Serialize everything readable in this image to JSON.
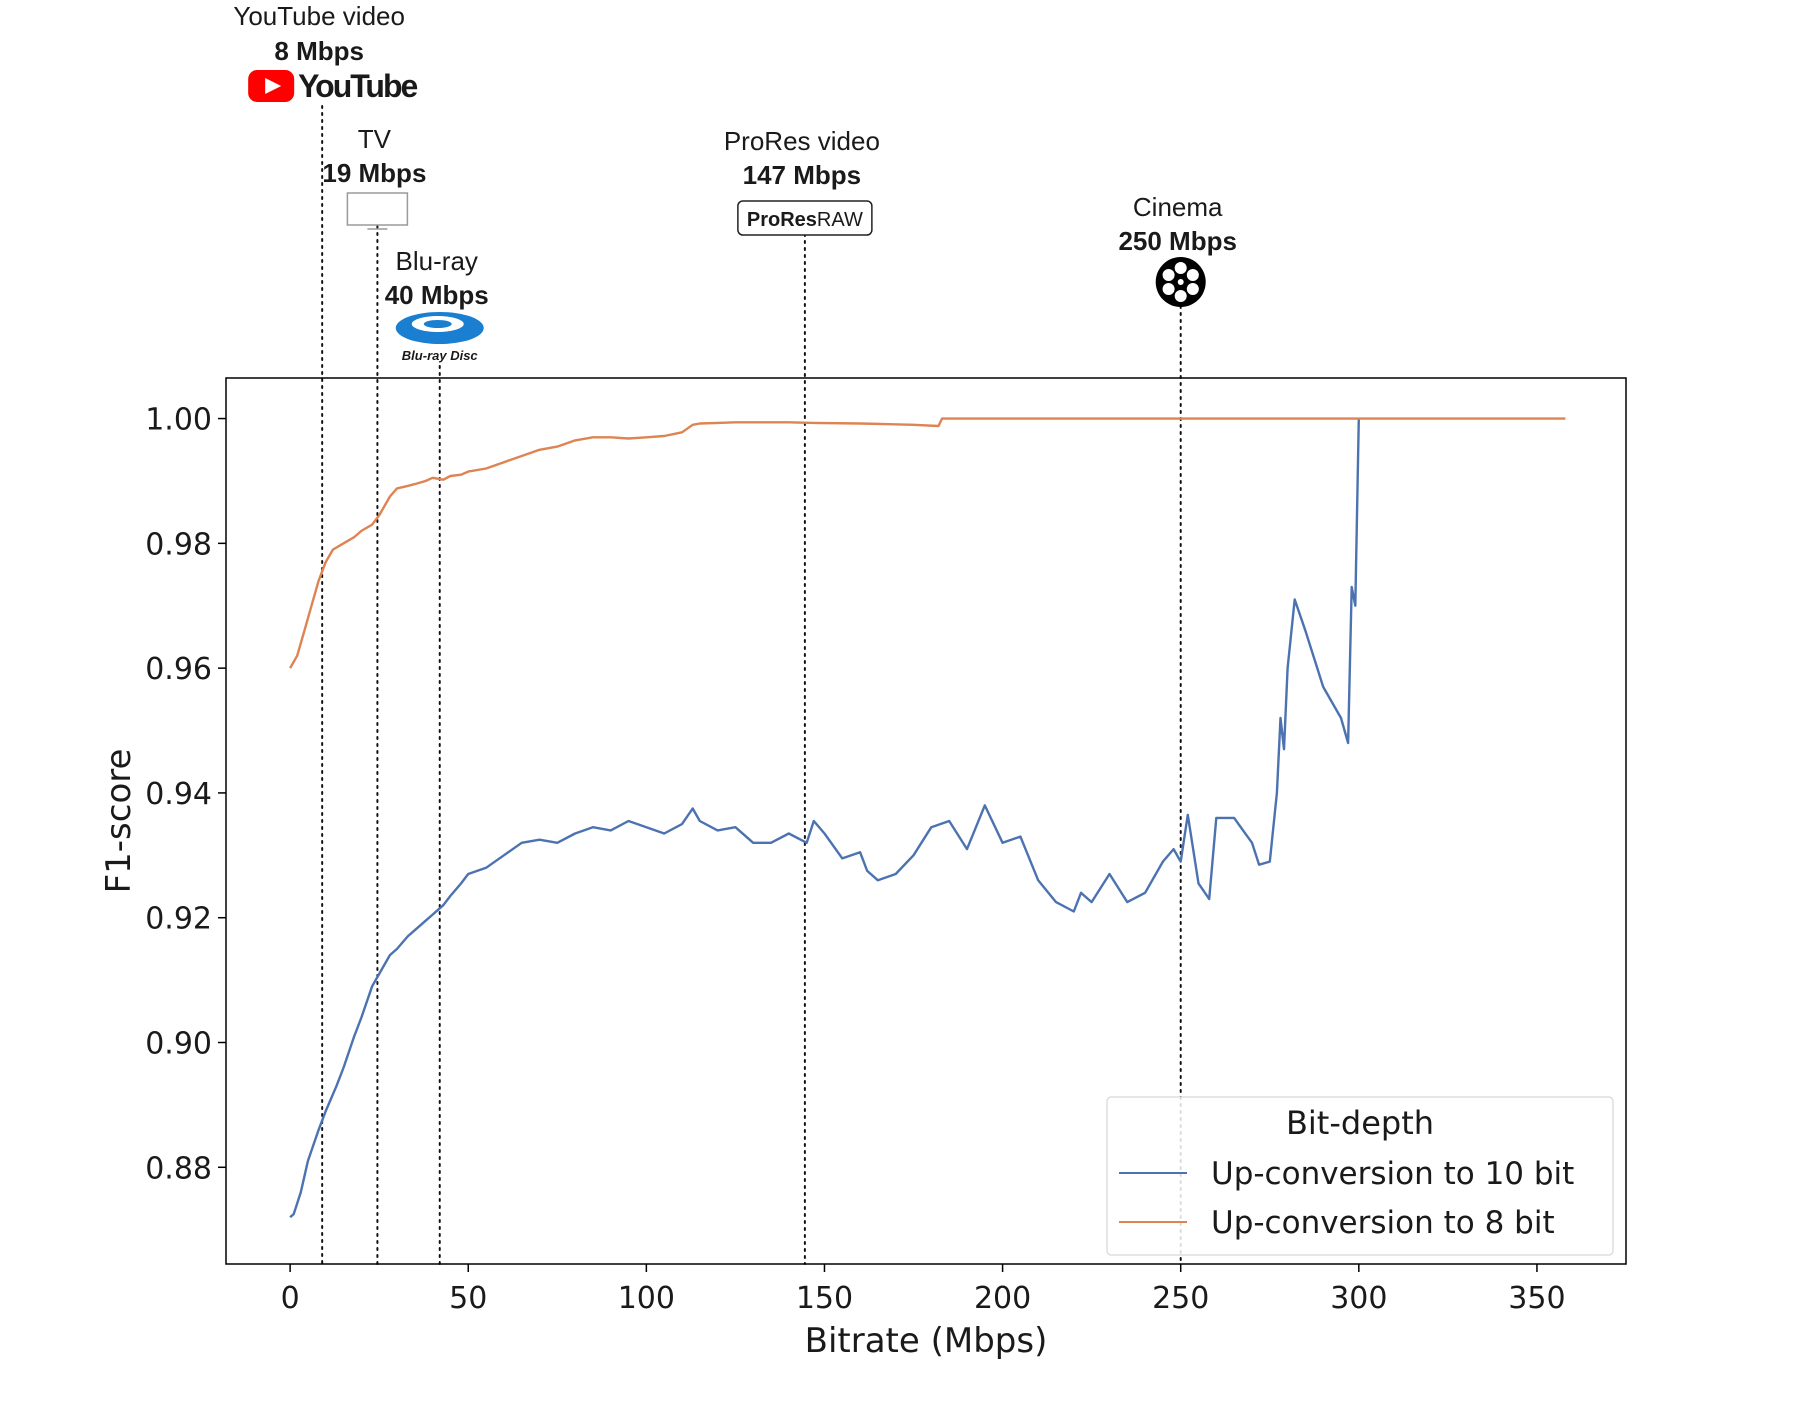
{
  "chart_data": {
    "type": "line",
    "xlabel": "Bitrate (Mbps)",
    "ylabel": "F1-score",
    "xlim": [
      -18,
      375
    ],
    "ylim": [
      0.8645,
      1.0065
    ],
    "x_ticks": [
      0,
      50,
      100,
      150,
      200,
      250,
      300,
      350
    ],
    "y_ticks": [
      0.88,
      0.9,
      0.92,
      0.94,
      0.96,
      0.98,
      1.0
    ],
    "x_tick_labels": [
      "0",
      "50",
      "100",
      "150",
      "200",
      "250",
      "300",
      "350"
    ],
    "y_tick_labels": [
      "0.88",
      "0.90",
      "0.92",
      "0.94",
      "0.96",
      "0.98",
      "1.00"
    ],
    "grid": false,
    "legend": {
      "title": "Bit-depth",
      "position": "lower-right"
    },
    "series": [
      {
        "name": "Up-conversion to 10 bit",
        "color": "#4c72b0",
        "x": [
          0,
          1,
          3,
          5,
          8,
          10,
          13,
          15,
          18,
          20,
          23,
          25,
          28,
          30,
          33,
          35,
          38,
          40,
          43,
          45,
          48,
          50,
          55,
          60,
          65,
          70,
          75,
          80,
          85,
          90,
          95,
          100,
          105,
          110,
          113,
          115,
          120,
          125,
          130,
          135,
          140,
          145,
          147,
          150,
          155,
          160,
          162,
          165,
          170,
          175,
          180,
          185,
          190,
          195,
          200,
          205,
          210,
          215,
          220,
          222,
          225,
          230,
          235,
          240,
          245,
          248,
          250,
          252,
          255,
          258,
          260,
          265,
          270,
          272,
          275,
          277,
          278,
          279,
          280,
          282,
          285,
          290,
          295,
          297,
          298,
          299,
          300
        ],
        "y": [
          0.872,
          0.8725,
          0.876,
          0.881,
          0.886,
          0.889,
          0.893,
          0.896,
          0.901,
          0.904,
          0.909,
          0.911,
          0.914,
          0.915,
          0.917,
          0.918,
          0.9195,
          0.9205,
          0.922,
          0.9235,
          0.9255,
          0.927,
          0.928,
          0.93,
          0.932,
          0.9325,
          0.932,
          0.9335,
          0.9345,
          0.934,
          0.9355,
          0.9345,
          0.9335,
          0.935,
          0.9375,
          0.9355,
          0.934,
          0.9345,
          0.932,
          0.932,
          0.9335,
          0.932,
          0.9355,
          0.9335,
          0.9295,
          0.9305,
          0.9275,
          0.926,
          0.927,
          0.93,
          0.9345,
          0.9355,
          0.931,
          0.938,
          0.932,
          0.933,
          0.926,
          0.9225,
          0.921,
          0.924,
          0.9225,
          0.927,
          0.9225,
          0.924,
          0.929,
          0.931,
          0.929,
          0.9365,
          0.9255,
          0.923,
          0.936,
          0.936,
          0.932,
          0.9285,
          0.929,
          0.94,
          0.952,
          0.947,
          0.96,
          0.971,
          0.966,
          0.957,
          0.952,
          0.948,
          0.973,
          0.97,
          1.0
        ]
      },
      {
        "name": "Up-conversion to 8 bit",
        "color": "#dd8452",
        "x": [
          0,
          2,
          4,
          6,
          8,
          10,
          12,
          15,
          18,
          20,
          23,
          25,
          28,
          30,
          33,
          35,
          38,
          40,
          43,
          45,
          48,
          50,
          55,
          60,
          65,
          70,
          75,
          80,
          85,
          90,
          95,
          100,
          105,
          110,
          113,
          115,
          120,
          125,
          140,
          147,
          160,
          175,
          182,
          183,
          200,
          225,
          250,
          275,
          300,
          325,
          358
        ],
        "y": [
          0.96,
          0.962,
          0.966,
          0.97,
          0.974,
          0.977,
          0.979,
          0.98,
          0.981,
          0.982,
          0.983,
          0.9845,
          0.9875,
          0.9888,
          0.9892,
          0.9895,
          0.99,
          0.9905,
          0.9902,
          0.9908,
          0.991,
          0.9915,
          0.992,
          0.993,
          0.994,
          0.995,
          0.9955,
          0.9965,
          0.997,
          0.997,
          0.9968,
          0.997,
          0.9972,
          0.9978,
          0.999,
          0.9992,
          0.9993,
          0.9994,
          0.9994,
          0.9993,
          0.9992,
          0.999,
          0.9988,
          1.0,
          1.0,
          1.0,
          1.0,
          1.0,
          1.0,
          1.0,
          1.0
        ]
      }
    ],
    "reference_lines": [
      {
        "x": 9,
        "name": "YouTube video",
        "rate": "8 Mbps",
        "logo": "youtube-logo"
      },
      {
        "x": 24.5,
        "name": "TV",
        "rate": "19 Mbps",
        "logo": "tv-icon"
      },
      {
        "x": 42,
        "name": "Blu-ray",
        "rate": "40 Mbps",
        "logo": "blu-ray-disc-logo"
      },
      {
        "x": 144.5,
        "name": "ProRes video",
        "rate": "147 Mbps",
        "logo": "prores-raw-logo"
      },
      {
        "x": 250,
        "name": "Cinema",
        "rate": "250 Mbps",
        "logo": "film-reel-icon"
      }
    ]
  },
  "logos": {
    "youtube_text": "YouTube",
    "prores_text_bold": "ProRes",
    "prores_text_light": "RAW",
    "bluray_text": "Blu-ray Disc"
  }
}
